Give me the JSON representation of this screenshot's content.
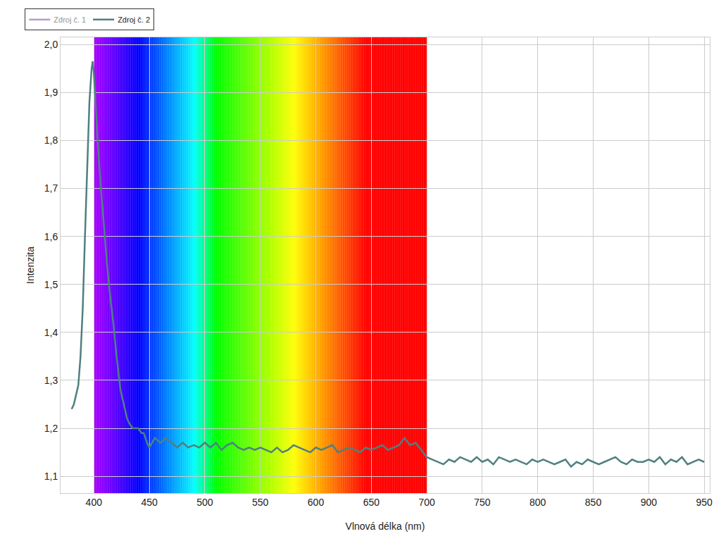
{
  "chart_data": {
    "type": "line",
    "xlabel": "Vlnová délka (nm)",
    "ylabel": "Intenzita",
    "x": [
      380,
      382,
      384,
      386,
      388,
      390,
      392,
      394,
      396,
      398,
      399,
      400,
      402,
      404,
      406,
      408,
      410,
      412,
      414,
      416,
      418,
      420,
      422,
      424,
      426,
      428,
      430,
      432,
      435,
      438,
      440,
      443,
      445,
      448,
      450,
      455,
      460,
      465,
      470,
      475,
      480,
      485,
      490,
      495,
      500,
      505,
      510,
      515,
      520,
      525,
      530,
      535,
      540,
      545,
      550,
      555,
      560,
      565,
      570,
      575,
      580,
      585,
      590,
      595,
      600,
      605,
      610,
      615,
      620,
      625,
      630,
      635,
      640,
      645,
      650,
      655,
      660,
      665,
      670,
      675,
      680,
      685,
      690,
      695,
      700,
      705,
      710,
      715,
      720,
      725,
      730,
      735,
      740,
      745,
      750,
      755,
      760,
      765,
      770,
      775,
      780,
      785,
      790,
      795,
      800,
      805,
      810,
      815,
      820,
      825,
      830,
      835,
      840,
      845,
      850,
      855,
      860,
      865,
      870,
      875,
      880,
      885,
      890,
      895,
      900,
      905,
      910,
      915,
      920,
      925,
      930,
      935,
      940,
      945,
      950
    ],
    "series": [
      {
        "name": "Zdroj č. 1",
        "color": "#6b3f8c",
        "values": [
          null,
          null,
          null,
          null,
          null,
          null,
          null,
          null,
          null,
          null,
          null,
          null,
          null,
          null,
          null,
          null,
          null,
          null,
          null,
          null,
          null,
          null,
          null,
          null,
          null,
          null,
          null,
          null,
          null,
          null,
          null,
          null,
          null,
          null,
          null,
          null,
          null,
          null,
          null,
          null,
          null,
          null,
          null,
          null,
          null,
          null,
          null,
          null,
          null,
          null,
          null,
          null,
          null,
          null,
          null,
          null,
          null,
          null,
          null,
          null,
          null,
          null,
          null,
          null,
          null,
          null,
          null,
          null,
          null,
          null,
          null,
          null,
          null,
          null,
          null,
          null,
          null,
          null,
          null,
          null,
          null,
          null,
          null,
          null,
          null,
          null,
          null,
          null,
          null,
          null,
          null,
          null,
          null,
          null,
          null,
          null,
          null,
          null,
          null,
          null,
          null,
          null,
          null,
          null,
          null,
          null,
          null,
          null,
          null,
          null,
          null,
          null,
          null,
          null,
          null,
          null,
          null,
          null,
          null,
          null,
          null,
          null,
          null,
          null,
          null,
          null,
          null,
          null,
          null,
          null,
          null,
          null,
          null,
          null,
          null
        ]
      },
      {
        "name": "Zdroj č. 2",
        "color": "#4f8080",
        "values": [
          1.24,
          1.25,
          1.27,
          1.29,
          1.35,
          1.45,
          1.6,
          1.75,
          1.88,
          1.95,
          1.965,
          1.94,
          1.85,
          1.78,
          1.71,
          1.65,
          1.59,
          1.54,
          1.49,
          1.45,
          1.41,
          1.36,
          1.32,
          1.28,
          1.26,
          1.24,
          1.22,
          1.21,
          1.2,
          1.2,
          1.2,
          1.19,
          1.19,
          1.17,
          1.16,
          1.18,
          1.17,
          1.18,
          1.17,
          1.16,
          1.17,
          1.16,
          1.165,
          1.16,
          1.17,
          1.16,
          1.17,
          1.155,
          1.165,
          1.17,
          1.16,
          1.155,
          1.16,
          1.155,
          1.16,
          1.155,
          1.15,
          1.16,
          1.15,
          1.155,
          1.165,
          1.16,
          1.155,
          1.15,
          1.16,
          1.155,
          1.16,
          1.165,
          1.15,
          1.155,
          1.16,
          1.155,
          1.15,
          1.16,
          1.155,
          1.16,
          1.165,
          1.155,
          1.16,
          1.165,
          1.18,
          1.165,
          1.17,
          1.155,
          1.14,
          1.135,
          1.13,
          1.125,
          1.135,
          1.13,
          1.14,
          1.135,
          1.13,
          1.14,
          1.13,
          1.135,
          1.125,
          1.14,
          1.135,
          1.13,
          1.135,
          1.13,
          1.125,
          1.135,
          1.13,
          1.135,
          1.13,
          1.125,
          1.13,
          1.135,
          1.12,
          1.13,
          1.125,
          1.135,
          1.13,
          1.125,
          1.13,
          1.135,
          1.14,
          1.13,
          1.125,
          1.135,
          1.13,
          1.13,
          1.135,
          1.13,
          1.14,
          1.125,
          1.135,
          1.13,
          1.14,
          1.125,
          1.13,
          1.135,
          1.13
        ]
      }
    ],
    "spectrum_band": [
      400,
      700
    ],
    "xlim": [
      370,
      955
    ],
    "xticks": [
      400,
      450,
      500,
      550,
      600,
      650,
      700,
      750,
      800,
      850,
      900,
      950
    ],
    "ylim": [
      1.065,
      2.015
    ],
    "yticks": [
      {
        "value": 1.1,
        "label": "1,1"
      },
      {
        "value": 1.2,
        "label": "1,2"
      },
      {
        "value": 1.3,
        "label": "1,3"
      },
      {
        "value": 1.4,
        "label": "1,4"
      },
      {
        "value": 1.5,
        "label": "1,5"
      },
      {
        "value": 1.6,
        "label": "1,6"
      },
      {
        "value": 1.7,
        "label": "1,7"
      },
      {
        "value": 1.8,
        "label": "1,8"
      },
      {
        "value": 1.9,
        "label": "1,9"
      },
      {
        "value": 2.0,
        "label": "2,0"
      }
    ],
    "grid": true,
    "legend": "top left"
  }
}
